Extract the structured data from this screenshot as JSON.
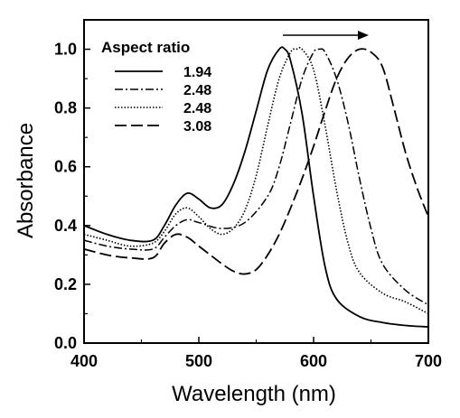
{
  "chart_data": {
    "type": "line",
    "xlabel": "Wavelength (nm)",
    "ylabel": "Absorbance",
    "xlim": [
      400,
      700
    ],
    "ylim": [
      0.0,
      1.1
    ],
    "xticks": [
      400,
      500,
      600,
      700
    ],
    "xtick_labels": [
      "400",
      "500",
      "600",
      "700"
    ],
    "yticks": [
      0.0,
      0.2,
      0.4,
      0.6,
      0.8,
      1.0
    ],
    "ytick_labels": [
      "0.0",
      "0.2",
      "0.4",
      "0.6",
      "0.8",
      "1.0"
    ],
    "grid": false,
    "legend_title": "Aspect ratio",
    "legend_position": "top-left",
    "annotation": "arrow pointing right indicating red-shift of peak",
    "series": [
      {
        "name": "1.94",
        "style": "solid",
        "x": [
          400,
          420,
          440,
          460,
          470,
          480,
          490,
          500,
          510,
          520,
          530,
          540,
          550,
          560,
          570,
          575,
          580,
          590,
          600,
          610,
          620,
          640,
          660,
          680,
          700
        ],
        "y": [
          0.4,
          0.37,
          0.35,
          0.35,
          0.4,
          0.47,
          0.51,
          0.49,
          0.46,
          0.47,
          0.54,
          0.65,
          0.79,
          0.93,
          1.0,
          1.0,
          0.96,
          0.78,
          0.5,
          0.26,
          0.15,
          0.09,
          0.07,
          0.06,
          0.055
        ]
      },
      {
        "name": "2.48",
        "style": "dashdot",
        "x": [
          400,
          420,
          440,
          460,
          470,
          480,
          490,
          500,
          520,
          540,
          560,
          570,
          580,
          590,
          600,
          605,
          610,
          620,
          630,
          640,
          650,
          660,
          680,
          700
        ],
        "y": [
          0.35,
          0.33,
          0.32,
          0.32,
          0.36,
          0.4,
          0.42,
          0.41,
          0.39,
          0.41,
          0.5,
          0.6,
          0.75,
          0.9,
          0.99,
          1.0,
          0.99,
          0.9,
          0.75,
          0.56,
          0.39,
          0.27,
          0.18,
          0.13
        ]
      },
      {
        "name": "2.48",
        "style": "dotted",
        "x": [
          400,
          420,
          440,
          460,
          470,
          480,
          490,
          500,
          510,
          520,
          530,
          540,
          550,
          560,
          570,
          580,
          585,
          590,
          600,
          610,
          620,
          630,
          640,
          660,
          680,
          700
        ],
        "y": [
          0.37,
          0.35,
          0.33,
          0.34,
          0.38,
          0.44,
          0.46,
          0.43,
          0.39,
          0.37,
          0.39,
          0.45,
          0.57,
          0.74,
          0.9,
          0.99,
          1.0,
          1.0,
          0.93,
          0.74,
          0.52,
          0.34,
          0.24,
          0.17,
          0.14,
          0.1
        ]
      },
      {
        "name": "3.08",
        "style": "dashed",
        "x": [
          400,
          420,
          440,
          460,
          470,
          480,
          490,
          500,
          510,
          520,
          530,
          540,
          550,
          560,
          570,
          580,
          590,
          600,
          610,
          620,
          630,
          640,
          650,
          660,
          670,
          680,
          690,
          700
        ],
        "y": [
          0.32,
          0.3,
          0.29,
          0.29,
          0.34,
          0.37,
          0.36,
          0.33,
          0.3,
          0.27,
          0.245,
          0.235,
          0.25,
          0.3,
          0.37,
          0.46,
          0.56,
          0.67,
          0.79,
          0.9,
          0.97,
          1.0,
          0.99,
          0.94,
          0.8,
          0.65,
          0.53,
          0.43
        ]
      }
    ]
  }
}
